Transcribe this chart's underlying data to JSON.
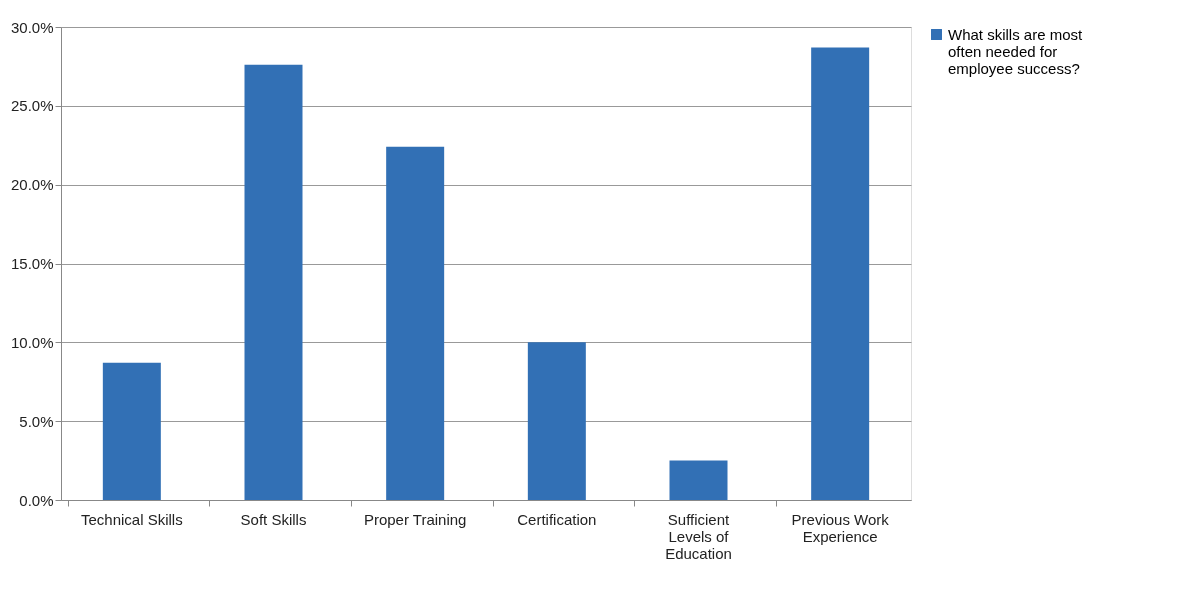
{
  "chart_data": {
    "type": "bar",
    "categories": [
      "Technical Skills",
      "Soft Skills",
      "Proper Training",
      "Certification",
      "Sufficient Levels of Education",
      "Previous Work Experience"
    ],
    "series": [
      {
        "name": "What skills are most often needed for employee success?",
        "color": "#3270b5",
        "values": [
          8.7,
          27.6,
          22.4,
          10.0,
          2.5,
          28.7
        ]
      }
    ],
    "ylim": [
      0,
      30
    ],
    "yticks": [
      {
        "value": 0,
        "label": "0.0%"
      },
      {
        "value": 5,
        "label": "5.0%"
      },
      {
        "value": 10,
        "label": "10.0%"
      },
      {
        "value": 15,
        "label": "15.0%"
      },
      {
        "value": 20,
        "label": "20.0%"
      },
      {
        "value": 25,
        "label": "25.0%"
      },
      {
        "value": 30,
        "label": "30.0%"
      }
    ],
    "grid": "y",
    "legend": "right"
  }
}
